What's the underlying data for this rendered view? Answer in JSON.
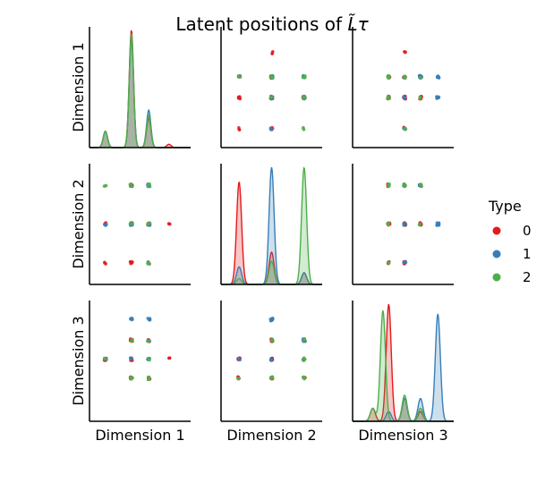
{
  "chart_data": {
    "type": "pairplot",
    "title": "Latent positions of",
    "title_symbol": "L̃τ",
    "variables": [
      "Dimension 1",
      "Dimension 2",
      "Dimension 3"
    ],
    "legend": {
      "title": "Type",
      "placement": "right",
      "entries": [
        "0",
        "1",
        "2"
      ]
    },
    "colors": {
      "0": "#e41a1c",
      "1": "#377eb8",
      "2": "#4daf4a"
    },
    "axis_ranges": {
      "Dimension 1": [
        -0.2,
        1.2
      ],
      "Dimension 2": [
        -0.2,
        1.2
      ],
      "Dimension 3": [
        -0.2,
        1.2
      ]
    },
    "grid": false,
    "diagonal": "kde",
    "offdiagonal": "scatter",
    "clusters": [
      {
        "type": "0",
        "d1": 0.38,
        "d2": 0.95,
        "d3": 0.3
      },
      {
        "type": "0",
        "d1": 0.38,
        "d2": 0.05,
        "d3": 0.3
      },
      {
        "type": "0",
        "d1": 0.62,
        "d2": 0.05,
        "d3": 0.3
      },
      {
        "type": "0",
        "d1": 0.62,
        "d2": 0.5,
        "d3": 0.3
      },
      {
        "type": "0",
        "d1": 0.62,
        "d2": 0.5,
        "d3": 0.74
      },
      {
        "type": "0",
        "d1": 0.38,
        "d2": 0.5,
        "d3": 0.74
      },
      {
        "type": "0",
        "d1": 0.38,
        "d2": 0.5,
        "d3": 0.3
      },
      {
        "type": "0",
        "d1": 0.38,
        "d2": 0.05,
        "d3": 0.52
      },
      {
        "type": "0",
        "d1": 0.38,
        "d2": 0.05,
        "d3": 0.52
      },
      {
        "type": "0",
        "d1": 0.38,
        "d2": 0.5,
        "d3": 0.52
      },
      {
        "type": "0",
        "d1": 0.62,
        "d2": 0.5,
        "d3": 0.52
      },
      {
        "type": "0",
        "d1": 0.02,
        "d2": 0.05,
        "d3": 0.52
      },
      {
        "type": "0",
        "d1": 0.02,
        "d2": 0.5,
        "d3": 0.52
      },
      {
        "type": "0",
        "d1": 0.38,
        "d2": 0.5,
        "d3": 0.74
      },
      {
        "type": "0",
        "d1": 0.38,
        "d2": 0.95,
        "d3": 0.52
      },
      {
        "type": "0",
        "d1": 0.9,
        "d2": 0.5,
        "d3": 0.52
      },
      {
        "type": "0",
        "d1": 0.38,
        "d2": 0.95,
        "d3": 0.74
      },
      {
        "type": "1",
        "d1": 0.38,
        "d2": 0.5,
        "d3": 0.98
      },
      {
        "type": "1",
        "d1": 0.62,
        "d2": 0.5,
        "d3": 0.98
      },
      {
        "type": "1",
        "d1": 0.62,
        "d2": 0.5,
        "d3": 0.98
      },
      {
        "type": "1",
        "d1": 0.62,
        "d2": 0.95,
        "d3": 0.74
      },
      {
        "type": "1",
        "d1": 0.38,
        "d2": 0.95,
        "d3": 0.52
      },
      {
        "type": "1",
        "d1": 0.02,
        "d2": 0.5,
        "d3": 0.52
      },
      {
        "type": "1",
        "d1": 0.38,
        "d2": 0.5,
        "d3": 0.98
      },
      {
        "type": "1",
        "d1": 0.62,
        "d2": 0.95,
        "d3": 0.74
      },
      {
        "type": "1",
        "d1": 0.62,
        "d2": 0.05,
        "d3": 0.52
      },
      {
        "type": "2",
        "d1": 0.38,
        "d2": 0.5,
        "d3": 0.3
      },
      {
        "type": "2",
        "d1": 0.62,
        "d2": 0.5,
        "d3": 0.3
      },
      {
        "type": "2",
        "d1": 0.62,
        "d2": 0.95,
        "d3": 0.52
      },
      {
        "type": "2",
        "d1": 0.02,
        "d2": 0.95,
        "d3": 0.52
      },
      {
        "type": "2",
        "d1": 0.38,
        "d2": 0.95,
        "d3": 0.3
      },
      {
        "type": "2",
        "d1": 0.38,
        "d2": 0.95,
        "d3": 0.74
      },
      {
        "type": "2",
        "d1": 0.62,
        "d2": 0.5,
        "d3": 0.74
      },
      {
        "type": "2",
        "d1": 0.62,
        "d2": 0.05,
        "d3": 0.3
      },
      {
        "type": "2",
        "d1": 0.62,
        "d2": 0.95,
        "d3": 0.3
      }
    ],
    "kde": {
      "Dimension 1": [
        {
          "type": "0",
          "peaks": [
            {
              "mu": 0.02,
              "sd": 0.03,
              "w": 0.1
            },
            {
              "mu": 0.38,
              "sd": 0.03,
              "w": 0.72
            },
            {
              "mu": 0.62,
              "sd": 0.03,
              "w": 0.18
            },
            {
              "mu": 0.9,
              "sd": 0.03,
              "w": 0.02
            }
          ]
        },
        {
          "type": "1",
          "peaks": [
            {
              "mu": 0.02,
              "sd": 0.03,
              "w": 0.1
            },
            {
              "mu": 0.38,
              "sd": 0.03,
              "w": 0.67
            },
            {
              "mu": 0.62,
              "sd": 0.03,
              "w": 0.23
            }
          ]
        },
        {
          "type": "2",
          "peaks": [
            {
              "mu": 0.02,
              "sd": 0.03,
              "w": 0.1
            },
            {
              "mu": 0.38,
              "sd": 0.03,
              "w": 0.7
            },
            {
              "mu": 0.62,
              "sd": 0.03,
              "w": 0.2
            }
          ]
        }
      ],
      "Dimension 2": [
        {
          "type": "0",
          "peaks": [
            {
              "mu": 0.05,
              "sd": 0.035,
              "w": 0.7
            },
            {
              "mu": 0.5,
              "sd": 0.035,
              "w": 0.22
            },
            {
              "mu": 0.95,
              "sd": 0.035,
              "w": 0.08
            }
          ]
        },
        {
          "type": "1",
          "peaks": [
            {
              "mu": 0.05,
              "sd": 0.035,
              "w": 0.12
            },
            {
              "mu": 0.5,
              "sd": 0.035,
              "w": 0.8
            },
            {
              "mu": 0.95,
              "sd": 0.035,
              "w": 0.08
            }
          ]
        },
        {
          "type": "2",
          "peaks": [
            {
              "mu": 0.05,
              "sd": 0.035,
              "w": 0.04
            },
            {
              "mu": 0.5,
              "sd": 0.035,
              "w": 0.16
            },
            {
              "mu": 0.95,
              "sd": 0.035,
              "w": 0.8
            }
          ]
        }
      ],
      "Dimension 3": [
        {
          "type": "0",
          "peaks": [
            {
              "mu": 0.08,
              "sd": 0.035,
              "w": 0.08
            },
            {
              "mu": 0.3,
              "sd": 0.035,
              "w": 0.72
            },
            {
              "mu": 0.52,
              "sd": 0.035,
              "w": 0.14
            },
            {
              "mu": 0.74,
              "sd": 0.035,
              "w": 0.06
            }
          ]
        },
        {
          "type": "1",
          "peaks": [
            {
              "mu": 0.3,
              "sd": 0.035,
              "w": 0.06
            },
            {
              "mu": 0.52,
              "sd": 0.035,
              "w": 0.14
            },
            {
              "mu": 0.74,
              "sd": 0.035,
              "w": 0.14
            },
            {
              "mu": 0.98,
              "sd": 0.035,
              "w": 0.66
            }
          ]
        },
        {
          "type": "2",
          "peaks": [
            {
              "mu": 0.08,
              "sd": 0.035,
              "w": 0.08
            },
            {
              "mu": 0.22,
              "sd": 0.035,
              "w": 0.68
            },
            {
              "mu": 0.52,
              "sd": 0.035,
              "w": 0.16
            },
            {
              "mu": 0.74,
              "sd": 0.035,
              "w": 0.08
            }
          ]
        }
      ]
    }
  }
}
